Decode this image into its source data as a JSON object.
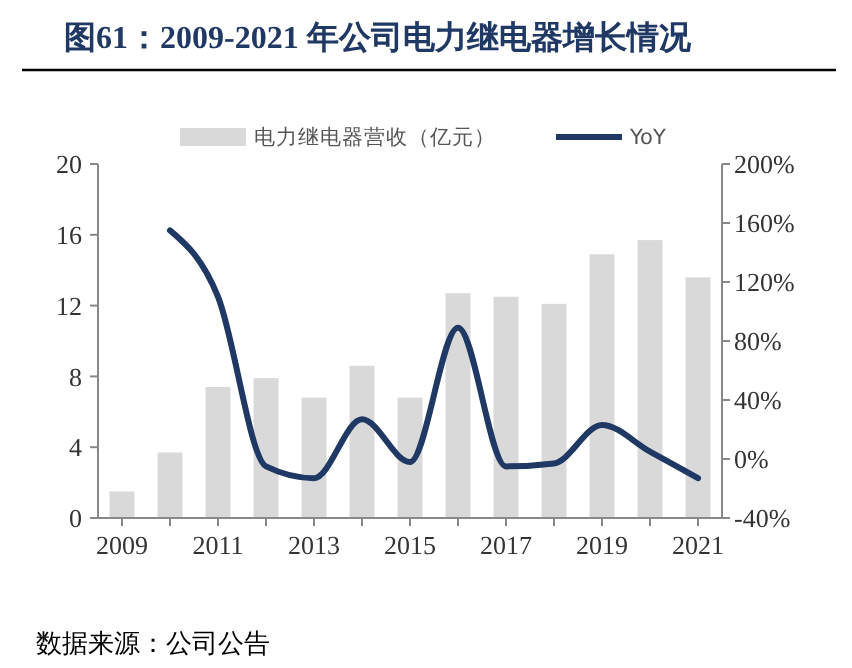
{
  "chart_data": {
    "type": "bar",
    "title": "图61：2009-2021 年公司电力继电器增长情况",
    "annotations": [
      "数据来源：公司公告"
    ],
    "categories": [
      "2009",
      null,
      "2011",
      null,
      "2013",
      null,
      "2015",
      null,
      "2017",
      null,
      "2019",
      null,
      "2021"
    ],
    "series": [
      {
        "name": "电力继电器营收（亿元）",
        "color": "#d9d9d9",
        "values": [
          1.5,
          3.7,
          7.4,
          7.9,
          6.8,
          8.6,
          6.8,
          12.7,
          12.5,
          12.1,
          14.9,
          15.7,
          13.6
        ]
      },
      {
        "name": "YoY",
        "type": "line",
        "axis": "y2",
        "color": "#203864",
        "values": [
          null,
          155,
          110,
          -5,
          -13,
          27,
          -2,
          89,
          -5,
          -3,
          23,
          5,
          -13
        ]
      }
    ],
    "ylim": [
      0,
      20
    ],
    "yticks": [
      0,
      4,
      8,
      12,
      16,
      20
    ],
    "y2lim": [
      -40,
      200
    ],
    "y2ticks": [
      {
        "value": -40,
        "label": "-40%"
      },
      {
        "value": 0,
        "label": "0%"
      },
      {
        "value": 40,
        "label": "40%"
      },
      {
        "value": 80,
        "label": "80%"
      },
      {
        "value": 120,
        "label": "120%"
      },
      {
        "value": 160,
        "label": "160%"
      },
      {
        "value": 200,
        "label": "200%"
      }
    ],
    "legend": "top",
    "grid": false,
    "marker": "none",
    "line_style": "solid"
  }
}
